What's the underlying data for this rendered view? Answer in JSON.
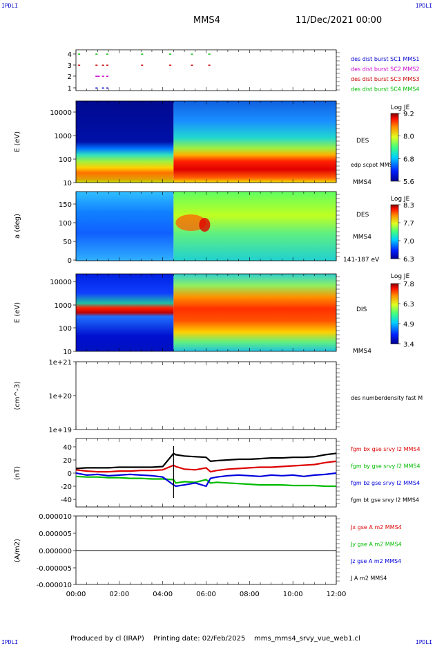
{
  "header": {
    "corner_label": "IPDLI",
    "satellite": "MMS4",
    "datetime": "11/Dec/2021 00:00"
  },
  "footer": {
    "produced": "Produced by cl (IRAP)",
    "printing": "Printing date: 02/Feb/2025",
    "file": "mms_mms4_srvy_vue_web1.cl"
  },
  "colors": {
    "spectro_low": "#0000a0",
    "spectro_mid": "#00ff00",
    "spectro_high": "#ff0000",
    "mms1": "#0000cc",
    "mms2": "#cc00cc",
    "mms3": "#cc0000",
    "mms4": "#00bb00"
  },
  "time_axis": {
    "ticks": [
      "00:00",
      "02:00",
      "04:00",
      "06:00",
      "08:00",
      "10:00",
      "12:00"
    ],
    "range_hours": [
      0,
      12
    ]
  },
  "panels": {
    "p1": {
      "yticks": [
        "4",
        "3",
        "2",
        "1"
      ],
      "legend": [
        {
          "text": "des dist burst SC1 MMS1",
          "color": "#0000cc"
        },
        {
          "text": "des dist burst SC2 MMS2",
          "color": "#cc00cc"
        },
        {
          "text": "des dist burst SC3 MMS3",
          "color": "#cc0000"
        },
        {
          "text": "des dist burst SC4 MMS4",
          "color": "#00bb00"
        }
      ]
    },
    "p2": {
      "ylabel": "E (eV)",
      "yticks": [
        "10000",
        "1000",
        "100",
        "10"
      ],
      "label": "DES",
      "sub": "edp scpot MMS4",
      "sat": "MMS4",
      "cbar_title": "Log JE",
      "cbar_ticks": [
        "9.2",
        "8.0",
        "6.8",
        "5.6"
      ]
    },
    "p3": {
      "ylabel": "a (deg)",
      "yticks": [
        "150",
        "100",
        "50",
        "0"
      ],
      "label": "DES",
      "sat": "MMS4",
      "range": "141-187 eV",
      "cbar_title": "Log JE",
      "cbar_ticks": [
        "8.3",
        "7.7",
        "7.0",
        "6.3"
      ]
    },
    "p4": {
      "ylabel": "E (eV)",
      "yticks": [
        "10000",
        "1000",
        "100",
        "10"
      ],
      "label": "DIS",
      "sat": "MMS4",
      "cbar_title": "Log JE",
      "cbar_ticks": [
        "7.8",
        "6.3",
        "4.9",
        "3.4"
      ]
    },
    "p5": {
      "ylabel": "(cm^-3)",
      "yticks": [
        "1e+21",
        "1e+20",
        "1e+19"
      ],
      "legend": "des numberdensity fast M"
    },
    "p6": {
      "ylabel": "(nT)",
      "yticks": [
        "40",
        "20",
        "0",
        "-20",
        "-40"
      ],
      "legend": [
        {
          "text": "fgm bx gse srvy l2 MMS4",
          "color": "#dd0000"
        },
        {
          "text": "fgm by gse srvy l2 MMS4",
          "color": "#00bb00"
        },
        {
          "text": "fgm bz gse srvy l2 MMS4",
          "color": "#0000dd"
        },
        {
          "text": "fgm bt gse srvy l2 MMS4",
          "color": "#000000"
        }
      ]
    },
    "p7": {
      "ylabel": "(A/m2)",
      "yticks": [
        "0.000010",
        "0.000005",
        "0.000000",
        "-0.000005",
        "-0.000010"
      ],
      "legend": [
        {
          "text": "Jx gse A m2 MMS4",
          "color": "#dd0000"
        },
        {
          "text": "Jy gse A m2 MMS4",
          "color": "#00bb00"
        },
        {
          "text": "Jz gse A m2 MMS4",
          "color": "#0000dd"
        },
        {
          "text": "J A m2 MMS4",
          "color": "#000000"
        }
      ]
    }
  },
  "chart_data": [
    {
      "type": "scatter",
      "title": "",
      "xlabel": "",
      "ylabel": "",
      "ylim": [
        0.5,
        4.5
      ],
      "series": [
        {
          "name": "des dist burst SC1 MMS1",
          "x": [
            0.9,
            1.2,
            1.4
          ],
          "values": [
            1,
            1,
            1
          ]
        },
        {
          "name": "des dist burst SC2 MMS2",
          "x": [
            0.9,
            1.0,
            1.2,
            1.4
          ],
          "values": [
            2,
            2,
            2,
            2
          ]
        },
        {
          "name": "des dist burst SC3 MMS3",
          "x": [
            0.1,
            0.9,
            1.2,
            1.4,
            3.0,
            4.3,
            5.3,
            6.1
          ],
          "values": [
            3,
            3,
            3,
            3,
            3,
            3,
            3,
            3
          ]
        },
        {
          "name": "des dist burst SC4 MMS4",
          "x": [
            0.1,
            0.9,
            1.4,
            3.0,
            4.3,
            5.3,
            6.1
          ],
          "values": [
            4,
            4,
            4,
            4,
            4,
            4,
            4
          ]
        }
      ]
    },
    {
      "type": "heatmap",
      "ylabel": "E (eV)",
      "ylim": [
        10,
        20000
      ],
      "colorbar_label": "Log JE",
      "colorbar_range": [
        5.6,
        9.2
      ],
      "summary": "Before ~04:30 flux concentrated below ~300 eV; after 04:30 a broad peak near 30-80 eV with elevated flux up to ~10 keV"
    },
    {
      "type": "heatmap",
      "ylabel": "a (deg)",
      "ylim": [
        0,
        180
      ],
      "colorbar_label": "Log JE",
      "colorbar_range": [
        6.3,
        8.3
      ],
      "summary": "Energy range 141-187 eV pitch-angle distribution; enhancement after ~04:30"
    },
    {
      "type": "heatmap",
      "ylabel": "E (eV)",
      "ylim": [
        10,
        20000
      ],
      "colorbar_label": "Log JE",
      "colorbar_range": [
        3.4,
        7.8
      ],
      "summary": "Narrow ion beam near ~500 eV before 04:30; broad ion flux 100 eV - 3 keV after 04:30"
    },
    {
      "type": "line",
      "ylabel": "(cm^-3)",
      "ylim": [
        1e+19,
        1e+21
      ],
      "series": [
        {
          "name": "des numberdensity fast M",
          "values": []
        }
      ]
    },
    {
      "type": "line",
      "ylabel": "(nT)",
      "ylim": [
        -50,
        50
      ],
      "x": [
        0,
        0.5,
        1,
        1.5,
        2,
        2.5,
        3,
        3.5,
        4,
        4.5,
        4.6,
        5,
        5.5,
        6,
        6.2,
        6.5,
        7,
        7.5,
        8,
        8.5,
        9,
        9.5,
        10,
        10.5,
        11,
        11.5,
        12
      ],
      "series": [
        {
          "name": "fgm bx gse srvy l2 MMS4",
          "values": [
            5,
            3,
            2,
            2,
            3,
            3,
            4,
            4,
            5,
            12,
            10,
            6,
            5,
            8,
            2,
            4,
            6,
            7,
            8,
            9,
            9,
            10,
            11,
            12,
            13,
            16,
            18
          ]
        },
        {
          "name": "fgm by gse srvy l2 MMS4",
          "values": [
            -5,
            -6,
            -6,
            -7,
            -7,
            -8,
            -8,
            -9,
            -9,
            -10,
            -15,
            -13,
            -14,
            -10,
            -15,
            -14,
            -15,
            -16,
            -17,
            -18,
            -18,
            -18,
            -19,
            -19,
            -19,
            -20,
            -20
          ]
        },
        {
          "name": "fgm bz gse srvy l2 MMS4",
          "values": [
            0,
            -3,
            -2,
            -4,
            -3,
            -2,
            -3,
            -4,
            -6,
            -18,
            -20,
            -18,
            -15,
            -20,
            -8,
            -6,
            -4,
            -3,
            -4,
            -5,
            -3,
            -4,
            -3,
            -5,
            -3,
            -2,
            0
          ]
        },
        {
          "name": "fgm bt gse srvy l2 MMS4",
          "values": [
            7,
            8,
            8,
            8,
            9,
            9,
            9,
            9,
            10,
            30,
            28,
            26,
            25,
            24,
            18,
            19,
            20,
            21,
            21,
            22,
            23,
            23,
            24,
            24,
            25,
            28,
            30
          ]
        }
      ]
    },
    {
      "type": "line",
      "ylabel": "(A/m2)",
      "ylim": [
        -1e-05,
        1e-05
      ],
      "x": [
        0,
        4.5,
        12
      ],
      "series": [
        {
          "name": "Jx gse A m2 MMS4",
          "values": [
            0,
            0,
            0
          ]
        },
        {
          "name": "Jy gse A m2 MMS4",
          "values": [
            0,
            0,
            0
          ]
        },
        {
          "name": "Jz gse A m2 MMS4",
          "values": [
            0,
            0,
            0
          ]
        },
        {
          "name": "J A m2 MMS4",
          "values": [
            0,
            0,
            0
          ]
        }
      ]
    }
  ]
}
